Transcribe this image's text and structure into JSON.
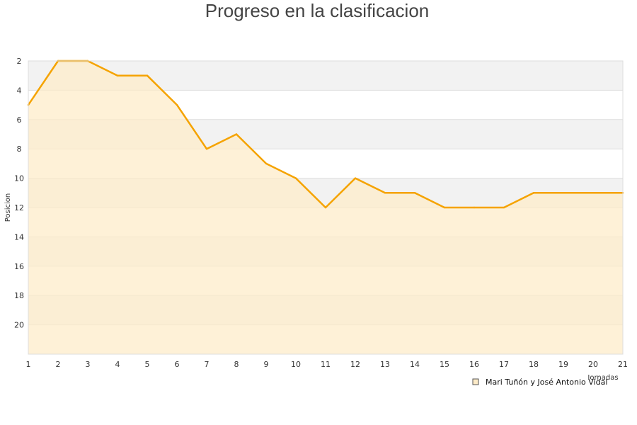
{
  "chart_data": {
    "type": "area",
    "title": "Progreso en la clasificacion",
    "ylabel": "Posicion",
    "xlabel": "Jornadas",
    "x": [
      1,
      2,
      3,
      4,
      5,
      6,
      7,
      8,
      9,
      10,
      11,
      12,
      13,
      14,
      15,
      16,
      17,
      18,
      19,
      20,
      21
    ],
    "xlim": [
      1,
      21
    ],
    "ylim": [
      2,
      22
    ],
    "y_inverted": true,
    "y_ticks": [
      2,
      4,
      6,
      8,
      10,
      12,
      14,
      16,
      18,
      20
    ],
    "series": [
      {
        "name": "Mari Tuñón y José Antonio Vidal",
        "values": [
          5,
          2,
          2,
          3,
          3,
          5,
          8,
          7,
          9,
          10,
          12,
          10,
          11,
          11,
          12,
          12,
          12,
          11,
          11,
          11,
          11
        ]
      }
    ],
    "colors": {
      "line": "#f5a300",
      "fill": "#fdebc8",
      "band_alt": "#f2f2f2",
      "grid": "#dddddd"
    },
    "grid": true,
    "legend_position": "bottom-right"
  }
}
